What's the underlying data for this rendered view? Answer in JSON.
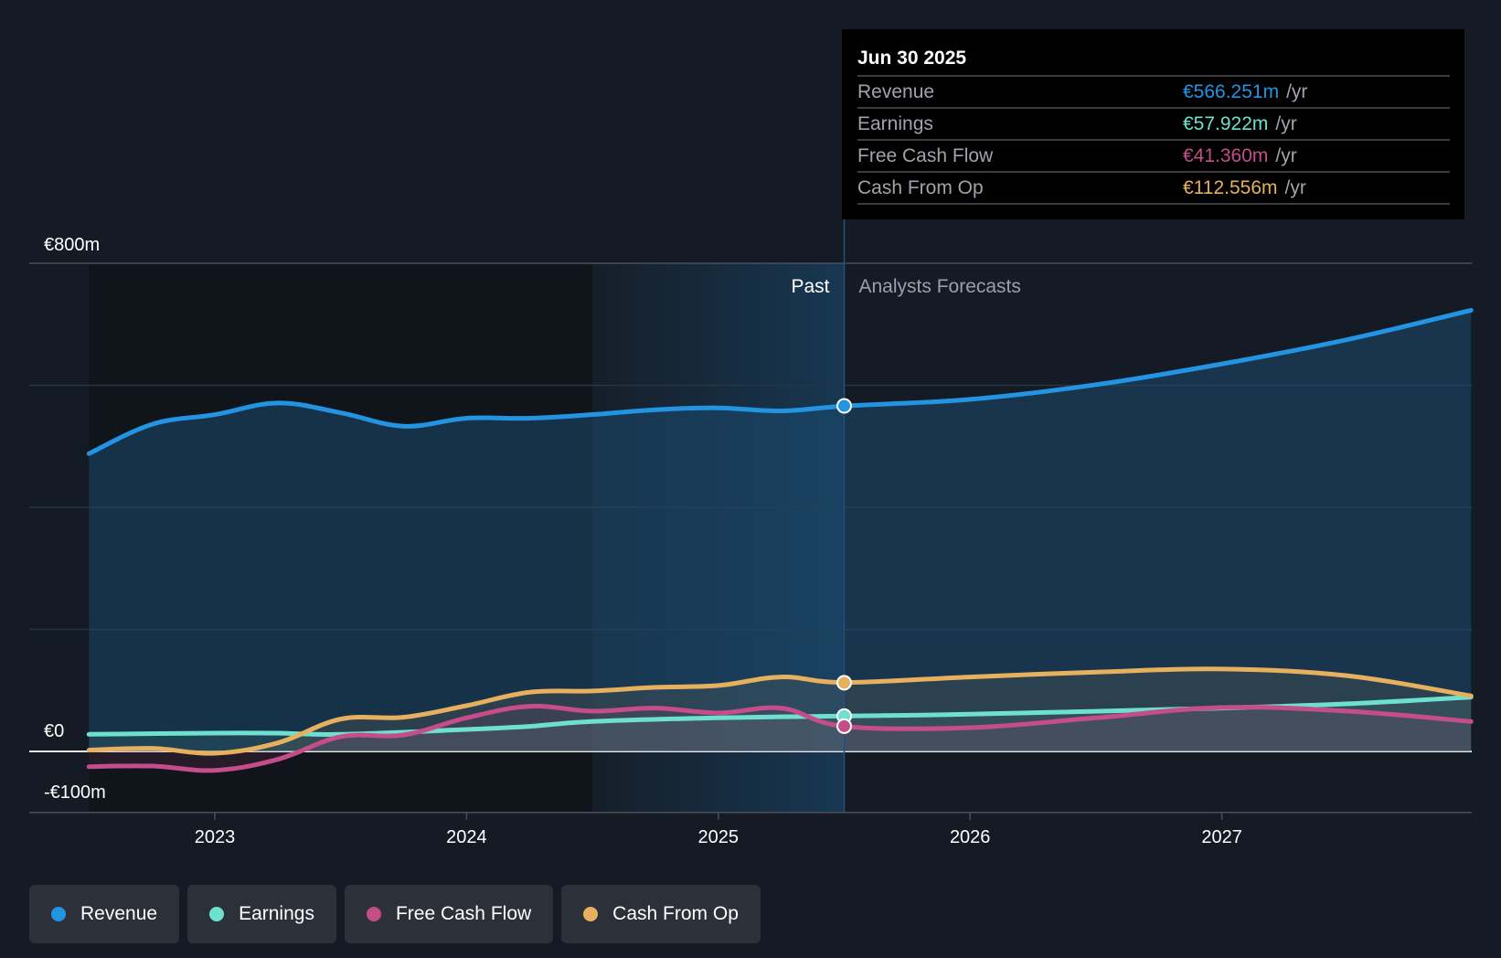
{
  "colors": {
    "revenue": "#2394e2",
    "earnings": "#6ee0cf",
    "free_cash_flow": "#c44d8a",
    "cash_from_op": "#e6b05e",
    "background": "#151b24",
    "tooltip_bg": "#000000"
  },
  "tooltip": {
    "date": "Jun 30 2025",
    "rows": [
      {
        "label": "Revenue",
        "value": "€566.251m",
        "unit": "/yr",
        "color": "#2394e2"
      },
      {
        "label": "Earnings",
        "value": "€57.922m",
        "unit": "/yr",
        "color": "#6ee0cf"
      },
      {
        "label": "Free Cash Flow",
        "value": "€41.360m",
        "unit": "/yr",
        "color": "#c44d8a"
      },
      {
        "label": "Cash From Op",
        "value": "€112.556m",
        "unit": "/yr",
        "color": "#e6b05e"
      }
    ]
  },
  "legend": [
    {
      "label": "Revenue",
      "color": "#2394e2"
    },
    {
      "label": "Earnings",
      "color": "#6ee0cf"
    },
    {
      "label": "Free Cash Flow",
      "color": "#c44d8a"
    },
    {
      "label": "Cash From Op",
      "color": "#e6b05e"
    }
  ],
  "chart_data": {
    "type": "line",
    "title": "",
    "xlabel": "",
    "ylabel": "",
    "currency": "EUR",
    "unit": "m",
    "ylim": [
      -100,
      800
    ],
    "xlim": [
      2022.3,
      2027.99
    ],
    "y_ticks": [
      {
        "value": 800,
        "label": "€800m"
      },
      {
        "value": 0,
        "label": "€0"
      },
      {
        "value": -100,
        "label": "-€100m"
      }
    ],
    "gridlines": [
      800,
      600,
      400,
      200,
      0,
      -100
    ],
    "x_ticks": [
      {
        "value": 2023,
        "label": "2023"
      },
      {
        "value": 2024,
        "label": "2024"
      },
      {
        "value": 2025,
        "label": "2025"
      },
      {
        "value": 2026,
        "label": "2026"
      },
      {
        "value": 2027,
        "label": "2027"
      }
    ],
    "past_label": "Past",
    "forecast_label": "Analysts Forecasts",
    "past_highlight_start": 2024.5,
    "divider_x": 2025.5,
    "hover_x": 2025.5,
    "legend_position": "bottom-left",
    "series": [
      {
        "key": "revenue",
        "name": "Revenue",
        "color": "#2394e2",
        "x": [
          2022.5,
          2022.75,
          2023.0,
          2023.25,
          2023.5,
          2023.75,
          2024.0,
          2024.25,
          2024.5,
          2024.75,
          2025.0,
          2025.25,
          2025.5,
          2026.0,
          2026.5,
          2027.0,
          2027.5,
          2027.99
        ],
        "values": [
          488,
          536,
          552,
          571,
          555,
          533,
          546,
          546,
          552,
          560,
          563,
          558,
          566,
          577,
          601,
          635,
          675,
          723
        ],
        "hover_value": 566.251
      },
      {
        "key": "earnings",
        "name": "Earnings",
        "color": "#6ee0cf",
        "x": [
          2022.5,
          2023.0,
          2023.25,
          2023.5,
          2024.0,
          2024.25,
          2024.5,
          2025.0,
          2025.5,
          2026.0,
          2027.0,
          2027.5,
          2027.99
        ],
        "values": [
          28,
          30,
          30,
          28,
          36,
          41,
          49,
          55,
          58,
          61,
          71,
          78,
          89
        ],
        "hover_value": 57.922
      },
      {
        "key": "free_cash_flow",
        "name": "Free Cash Flow",
        "color": "#c44d8a",
        "x": [
          2022.5,
          2022.75,
          2023.0,
          2023.25,
          2023.5,
          2023.75,
          2024.0,
          2024.25,
          2024.5,
          2024.75,
          2025.0,
          2025.25,
          2025.5,
          2026.0,
          2026.5,
          2027.0,
          2027.5,
          2027.99
        ],
        "values": [
          -25,
          -24,
          -31,
          -13,
          24,
          27,
          55,
          74,
          66,
          71,
          63,
          71,
          41,
          39,
          55,
          72,
          66,
          49
        ],
        "hover_value": 41.36
      },
      {
        "key": "cash_from_op",
        "name": "Cash From Op",
        "color": "#e6b05e",
        "x": [
          2022.5,
          2022.75,
          2023.0,
          2023.25,
          2023.5,
          2023.75,
          2024.0,
          2024.25,
          2024.5,
          2024.75,
          2025.0,
          2025.25,
          2025.5,
          2026.0,
          2026.5,
          2027.0,
          2027.5,
          2027.99
        ],
        "values": [
          2,
          5,
          -3,
          14,
          53,
          56,
          75,
          97,
          99,
          105,
          108,
          122,
          113,
          122,
          130,
          135,
          124,
          91
        ],
        "hover_value": 112.556
      }
    ]
  }
}
